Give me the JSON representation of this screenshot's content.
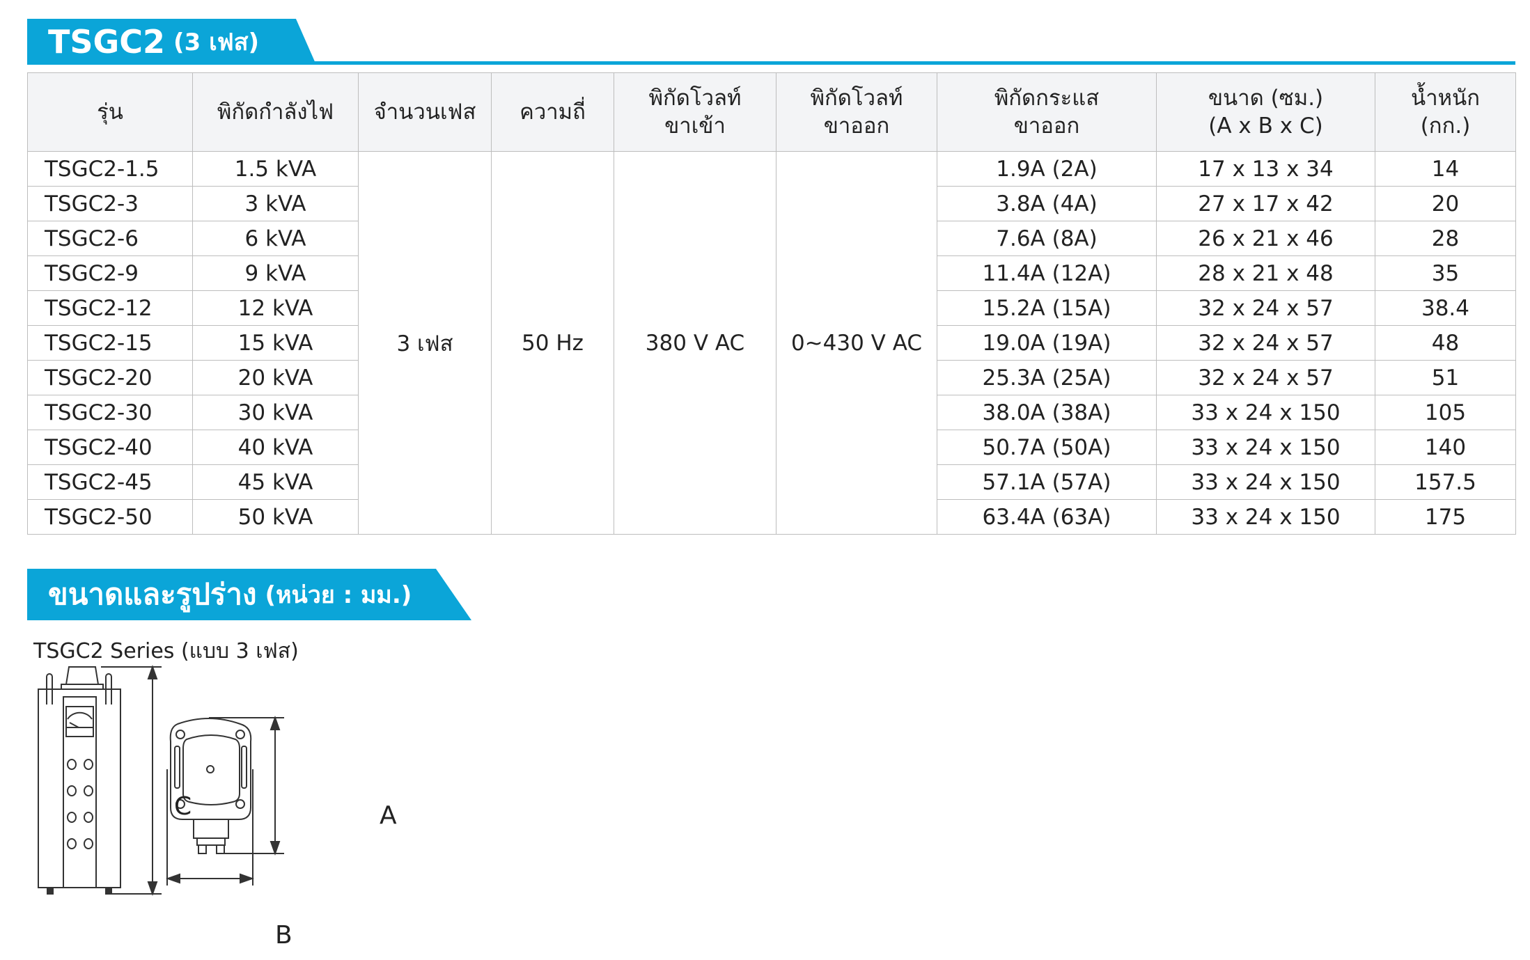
{
  "title": {
    "main": "TSGC2",
    "sub": "(3 เฟส)"
  },
  "table": {
    "headers": [
      "รุ่น",
      "พิกัดกำลังไฟ",
      "จำนวนเฟส",
      "ความถี่",
      "พิกัดโวลท์\nขาเข้า",
      "พิกัดโวลท์\nขาออก",
      "พิกัดกระแส\nขาออก",
      "ขนาด (ซม.)\n(A x B x C)",
      "น้ำหนัก\n(กก.)"
    ],
    "shared": {
      "phase": "3 เฟส",
      "frequency": "50 Hz",
      "input_voltage": "380 V AC",
      "output_voltage": "0~430 V AC"
    },
    "rows": [
      {
        "model": "TSGC2-1.5",
        "power": "1.5 kVA",
        "current": "1.9A (2A)",
        "size": "17 x 13 x 34",
        "weight": "14"
      },
      {
        "model": "TSGC2-3",
        "power": "3 kVA",
        "current": "3.8A (4A)",
        "size": "27 x 17 x 42",
        "weight": "20"
      },
      {
        "model": "TSGC2-6",
        "power": "6 kVA",
        "current": "7.6A (8A)",
        "size": "26 x 21 x 46",
        "weight": "28"
      },
      {
        "model": "TSGC2-9",
        "power": "9 kVA",
        "current": "11.4A (12A)",
        "size": "28 x 21 x 48",
        "weight": "35"
      },
      {
        "model": "TSGC2-12",
        "power": "12 kVA",
        "current": "15.2A (15A)",
        "size": "32 x 24 x 57",
        "weight": "38.4"
      },
      {
        "model": "TSGC2-15",
        "power": "15 kVA",
        "current": "19.0A (19A)",
        "size": "32 x 24 x 57",
        "weight": "48"
      },
      {
        "model": "TSGC2-20",
        "power": "20 kVA",
        "current": "25.3A (25A)",
        "size": "32 x 24 x 57",
        "weight": "51"
      },
      {
        "model": "TSGC2-30",
        "power": "30 kVA",
        "current": "38.0A (38A)",
        "size": "33 x 24 x 150",
        "weight": "105"
      },
      {
        "model": "TSGC2-40",
        "power": "40 kVA",
        "current": "50.7A (50A)",
        "size": "33 x 24 x 150",
        "weight": "140"
      },
      {
        "model": "TSGC2-45",
        "power": "45 kVA",
        "current": "57.1A (57A)",
        "size": "33 x 24 x 150",
        "weight": "157.5"
      },
      {
        "model": "TSGC2-50",
        "power": "50 kVA",
        "current": "63.4A (63A)",
        "size": "33 x 24 x 150",
        "weight": "175"
      }
    ]
  },
  "dimensions": {
    "title": "ขนาดและรูปร่าง",
    "unit": "(หน่วย : มม.)",
    "series": "TSGC2 Series (แบบ 3 เฟส)",
    "labels": {
      "a": "A",
      "b": "B",
      "c": "C"
    }
  },
  "colors": {
    "accent": "#0ba5d8",
    "header_bg": "#f3f4f6"
  }
}
